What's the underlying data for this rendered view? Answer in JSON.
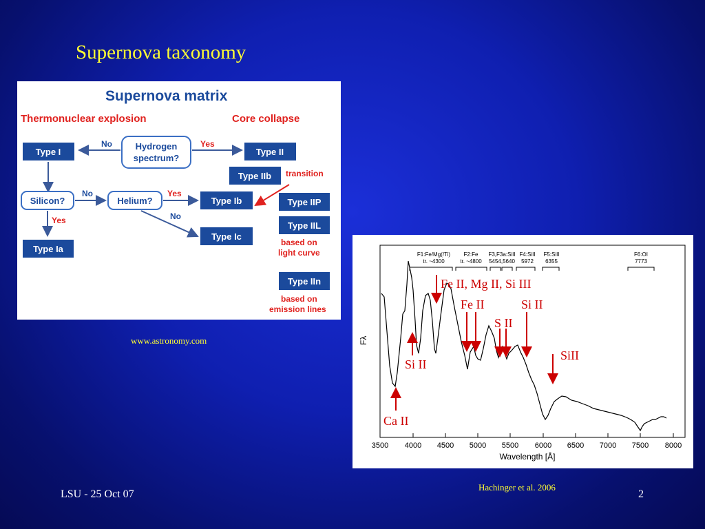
{
  "slide": {
    "title": "Supernova taxonomy",
    "source_caption": "www.astronomy.com",
    "reference_caption": "Hachinger et al. 2006",
    "footer_left": "LSU - 25 Oct 07",
    "page_number": "2"
  },
  "matrix": {
    "title": "Supernova matrix",
    "left_header": "Thermonuclear explosion",
    "right_header": "Core collapse",
    "question1": [
      "Hydrogen",
      "spectrum?"
    ],
    "no1": "No",
    "yes1": "Yes",
    "type_I": "Type I",
    "type_II": "Type II",
    "type_IIb": "Type IIb",
    "transition": "transition",
    "silicon": "Silicon?",
    "no2": "No",
    "helium": "Helium?",
    "yes2": "Yes",
    "no3": "No",
    "yes3": "Yes",
    "type_Ib": "Type Ib",
    "type_Ic": "Type Ic",
    "type_Ia": "Type Ia",
    "type_IIP": "Type IIP",
    "type_IIL": "Type IIL",
    "based_light": [
      "based on",
      "light curve"
    ],
    "type_IIn": "Type IIn",
    "based_emission": [
      "based on",
      "emission lines"
    ],
    "colors": {
      "box": "#1b4a9c",
      "accent": "#e0221f",
      "outline": "#3b6fc4"
    }
  },
  "spectrum": {
    "y_label": "Fλ",
    "x_label": "Wavelength [Å]",
    "x_ticks": [
      "3500",
      "4000",
      "4500",
      "5000",
      "5500",
      "6000",
      "6500",
      "7000",
      "7500",
      "8000"
    ],
    "feature_labels": [
      [
        "F1:Fe/Mg(/Ti)",
        "tr. ~4300"
      ],
      [
        "F2:Fe",
        "tr. ~4800"
      ],
      [
        "F3,F3a:SiII",
        "5454,5640"
      ],
      [
        "F4:SiII",
        "5972"
      ],
      [
        "F5:SiII",
        "6355"
      ],
      [
        "F6:OI",
        "7773"
      ]
    ],
    "annotations": {
      "fe_mg_si": "Fe II, Mg II, Si III",
      "fe2": "Fe II",
      "si2_top": "Si II",
      "s2": "S II",
      "si2_right": "SiII",
      "si2_left": "Si II",
      "ca2": "Ca II"
    },
    "colors": {
      "annotation": "#cc0000"
    }
  }
}
